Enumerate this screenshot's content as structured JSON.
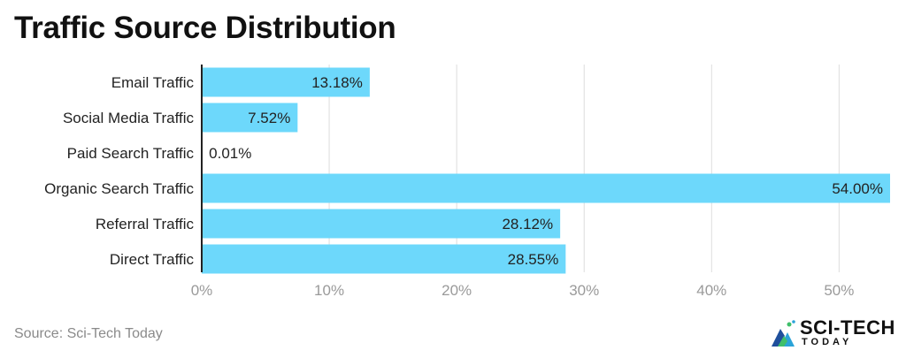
{
  "title": "Traffic Source Distribution",
  "source": "Source: Sci-Tech Today",
  "logo": {
    "word1": "SCI-TECH",
    "word2": "TODAY"
  },
  "colors": {
    "bar": "#6dd8fb",
    "grid": "#dddddd",
    "axis": "#222222",
    "tick": "#9a9a9a",
    "text": "#222222"
  },
  "chart_data": {
    "type": "bar",
    "orientation": "horizontal",
    "title": "Traffic Source Distribution",
    "categories": [
      "Email Traffic",
      "Social Media Traffic",
      "Paid Search Traffic",
      "Organic Search Traffic",
      "Referral Traffic",
      "Direct Traffic"
    ],
    "values": [
      13.18,
      7.52,
      0.01,
      54.0,
      28.12,
      28.55
    ],
    "data_labels": [
      "13.18%",
      "7.52%",
      "0.01%",
      "54.00%",
      "28.12%",
      "28.55%"
    ],
    "xlim": [
      0,
      54
    ],
    "xticks": [
      0,
      10,
      20,
      30,
      40,
      50
    ],
    "xtick_labels": [
      "0%",
      "10%",
      "20%",
      "30%",
      "40%",
      "50%"
    ],
    "grid": true,
    "legend": "none"
  }
}
